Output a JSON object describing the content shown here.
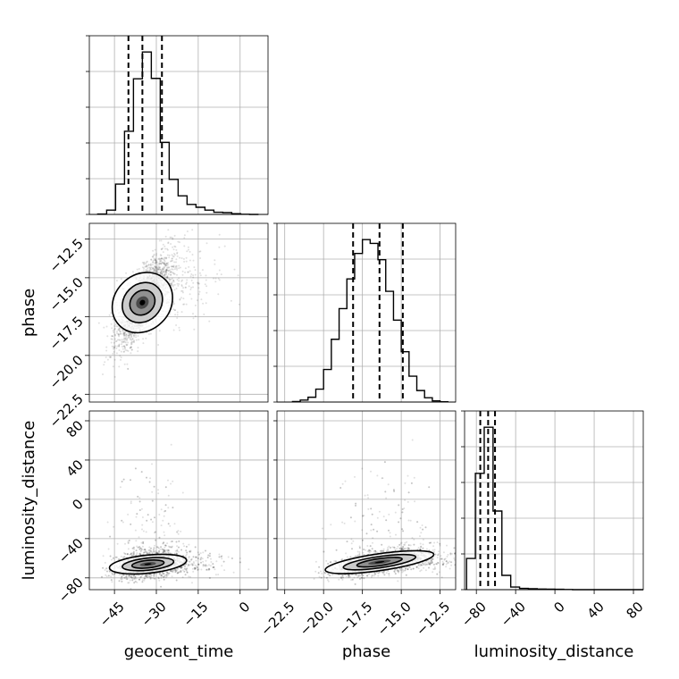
{
  "chart_data": {
    "type": "corner",
    "parameters": [
      {
        "name": "geocent_time",
        "label": "geocent_time",
        "range": [
          -54,
          10
        ],
        "ticks": [
          -45,
          -30,
          -15,
          0
        ],
        "tick_labels": [
          "−45",
          "−30",
          "−15",
          "0"
        ],
        "quantiles": [
          -40,
          -35,
          -28
        ]
      },
      {
        "name": "phase",
        "label": "phase",
        "range": [
          -23,
          -11.5
        ],
        "ticks": [
          -22.5,
          -20.0,
          -17.5,
          -15.0,
          -12.5
        ],
        "tick_labels": [
          "−22.5",
          "−20.0",
          "−17.5",
          "−15.0",
          "−12.5"
        ],
        "quantiles": [
          -18.1,
          -16.4,
          -14.9
        ]
      },
      {
        "name": "luminosity_distance",
        "label": "luminosity_distance",
        "range": [
          -92,
          90
        ],
        "ticks": [
          -80,
          -40,
          0,
          40,
          80
        ],
        "tick_labels": [
          "−80",
          "−40",
          "0",
          "40",
          "80"
        ],
        "quantiles": [
          -76,
          -68,
          -61
        ]
      }
    ],
    "histograms": [
      {
        "param": "geocent_time",
        "bin_edges": [
          -51,
          -47.8,
          -44.6,
          -41.4,
          -38.2,
          -35.0,
          -31.8,
          -28.6,
          -25.4,
          -22.2,
          -19.0,
          -15.8,
          -12.6,
          -9.4,
          -6.2,
          -3.0,
          0.2,
          3.4,
          6.6
        ],
        "counts": [
          0.1,
          1.2,
          8.5,
          23.3,
          38.0,
          45.5,
          38.1,
          20.2,
          9.8,
          5.2,
          2.8,
          2.0,
          1.2,
          0.6,
          0.5,
          0.2,
          0.05,
          0
        ]
      },
      {
        "param": "phase",
        "bin_edges": [
          -22.0,
          -21.5,
          -21.0,
          -20.5,
          -20.0,
          -19.5,
          -19.0,
          -18.5,
          -18.0,
          -17.5,
          -17.0,
          -16.5,
          -16.0,
          -15.5,
          -15.0,
          -14.5,
          -14.0,
          -13.5,
          -13.0,
          -12.5,
          -12.0
        ],
        "counts": [
          0.1,
          0.4,
          1.0,
          2.7,
          6.8,
          13.1,
          19.5,
          25.7,
          31.0,
          33.9,
          33.1,
          29.7,
          23.1,
          17.1,
          10.5,
          5.4,
          2.4,
          0.9,
          0.25,
          0.05
        ]
      },
      {
        "param": "luminosity_distance",
        "bin_edges": [
          -90,
          -81,
          -72,
          -63,
          -54,
          -45,
          -36,
          -27,
          -18,
          -9,
          0,
          9,
          18,
          27,
          36,
          45,
          54,
          63,
          72,
          81,
          90
        ],
        "counts": [
          4.8,
          17.9,
          25.0,
          12.1,
          2.2,
          0.4,
          0.2,
          0.15,
          0.1,
          0.08,
          0.06,
          0.02,
          0,
          0,
          0,
          0,
          0,
          0,
          0,
          0
        ]
      }
    ],
    "pairs": [
      {
        "x": "geocent_time",
        "y": "phase",
        "center": [
          -35,
          -16.6
        ],
        "std": [
          4.6,
          1.35
        ],
        "correlation": 0.72,
        "tail": "right"
      },
      {
        "x": "geocent_time",
        "y": "luminosity_distance",
        "center": [
          -33,
          -66
        ],
        "std": [
          5.5,
          7
        ],
        "correlation": 0.25,
        "tail": "up"
      },
      {
        "x": "phase",
        "y": "luminosity_distance",
        "center": [
          -16.4,
          -64
        ],
        "std": [
          1.4,
          6.5
        ],
        "correlation": 0.55,
        "tail": "up"
      }
    ],
    "grid": true,
    "axis_labels": {
      "geocent_time": "geocent_time",
      "phase": "phase",
      "luminosity_distance": "luminosity_distance"
    }
  }
}
